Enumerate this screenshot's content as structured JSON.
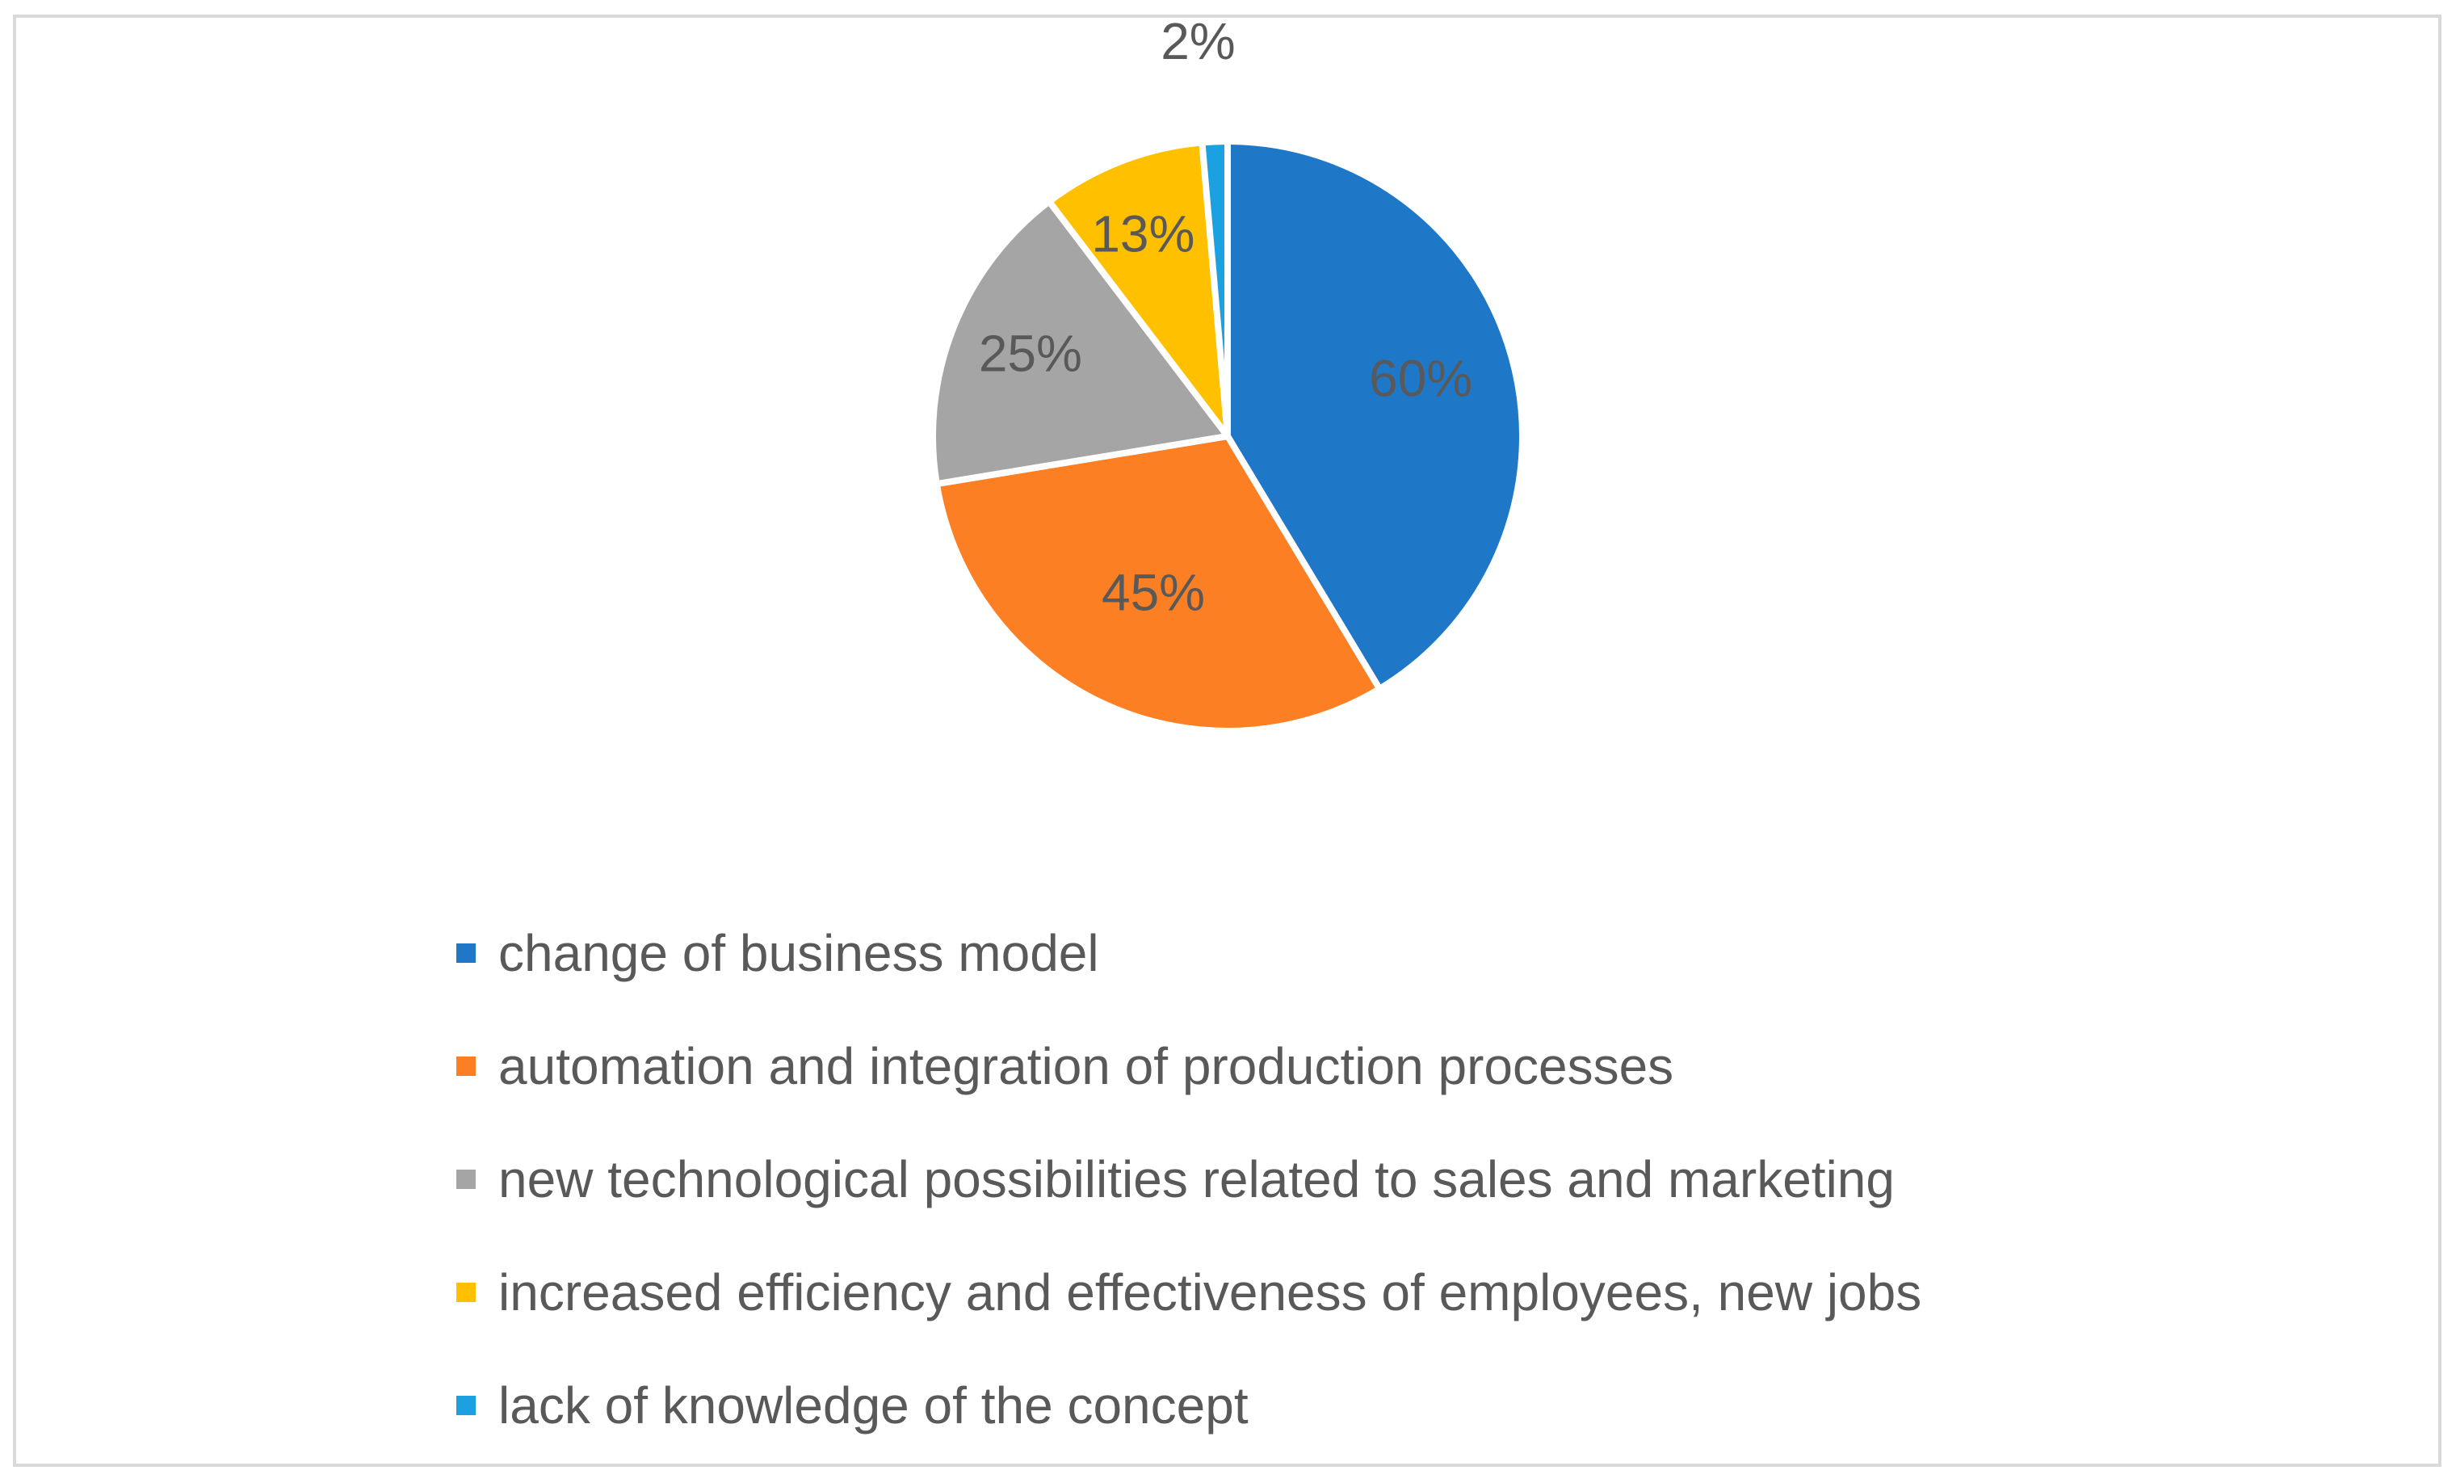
{
  "chart_data": {
    "type": "pie",
    "title": "",
    "slices": [
      {
        "name": "change of business model",
        "value": 60,
        "label": "60%",
        "color": "#1f77c8"
      },
      {
        "name": "automation and integration of production processes",
        "value": 45,
        "label": "45%",
        "color": "#fd7f23"
      },
      {
        "name": "new technological possibilities related to sales and marketing",
        "value": 25,
        "label": "25%",
        "color": "#a5a5a5"
      },
      {
        "name": "increased efficiency and effectiveness of employees, new jobs",
        "value": 13,
        "label": "13%",
        "color": "#ffc000"
      },
      {
        "name": "lack of knowledge of the concept",
        "value": 2,
        "label": "2%",
        "color": "#1ba1e2"
      }
    ],
    "legend_position": "bottom"
  },
  "legend": {
    "items": [
      {
        "label": "change of business model",
        "color": "#1f77c8"
      },
      {
        "label": "automation and integration of production processes",
        "color": "#fd7f23"
      },
      {
        "label": "new technological possibilities related to sales and marketing",
        "color": "#a5a5a5"
      },
      {
        "label": "increased efficiency and effectiveness of employees, new jobs",
        "color": "#ffc000"
      },
      {
        "label": "lack of knowledge of the concept",
        "color": "#1ba1e2"
      }
    ]
  }
}
